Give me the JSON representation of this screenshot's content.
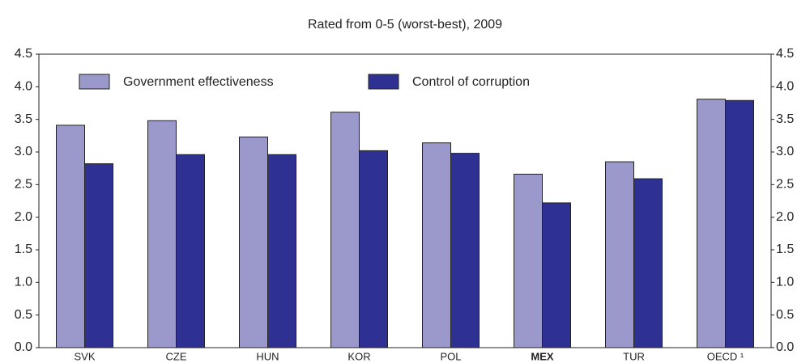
{
  "chart_data": {
    "type": "bar",
    "title": "Rated from 0-5 (worst-best), 2009",
    "categories": [
      "SVK",
      "CZE",
      "HUN",
      "KOR",
      "POL",
      "MEX",
      "TUR",
      "OECD ¹"
    ],
    "highlight": "MEX",
    "series": [
      {
        "name": "Government effectiveness",
        "color": "#9b99cc",
        "values": [
          3.41,
          3.48,
          3.23,
          3.61,
          3.14,
          2.66,
          2.85,
          3.81
        ]
      },
      {
        "name": "Control of corruption",
        "color": "#2e3192",
        "values": [
          2.82,
          2.96,
          2.96,
          3.02,
          2.98,
          2.22,
          2.59,
          3.79
        ]
      }
    ],
    "ylim": [
      0,
      4.5
    ],
    "yticks": [
      {
        "value": 0,
        "label": "0.0"
      },
      0.5,
      {
        "value": 1,
        "label": "1.0"
      },
      1.5,
      {
        "value": 2,
        "label": "2.0"
      },
      2.5,
      {
        "value": 3,
        "label": "3.0"
      },
      3.5,
      {
        "value": 4,
        "label": "4.0"
      },
      4.5
    ],
    "y2lim": [
      0,
      4.5
    ],
    "y2ticks": [
      {
        "value": 0,
        "label": "0.0"
      },
      0.5,
      {
        "value": 1,
        "label": "1.0"
      },
      1.5,
      {
        "value": 2,
        "label": "2.0"
      },
      2.5,
      {
        "value": 3,
        "label": "3.0"
      },
      3.5,
      {
        "value": 4,
        "label": "4.0"
      },
      4.5
    ],
    "grid": false,
    "legend": "top"
  }
}
